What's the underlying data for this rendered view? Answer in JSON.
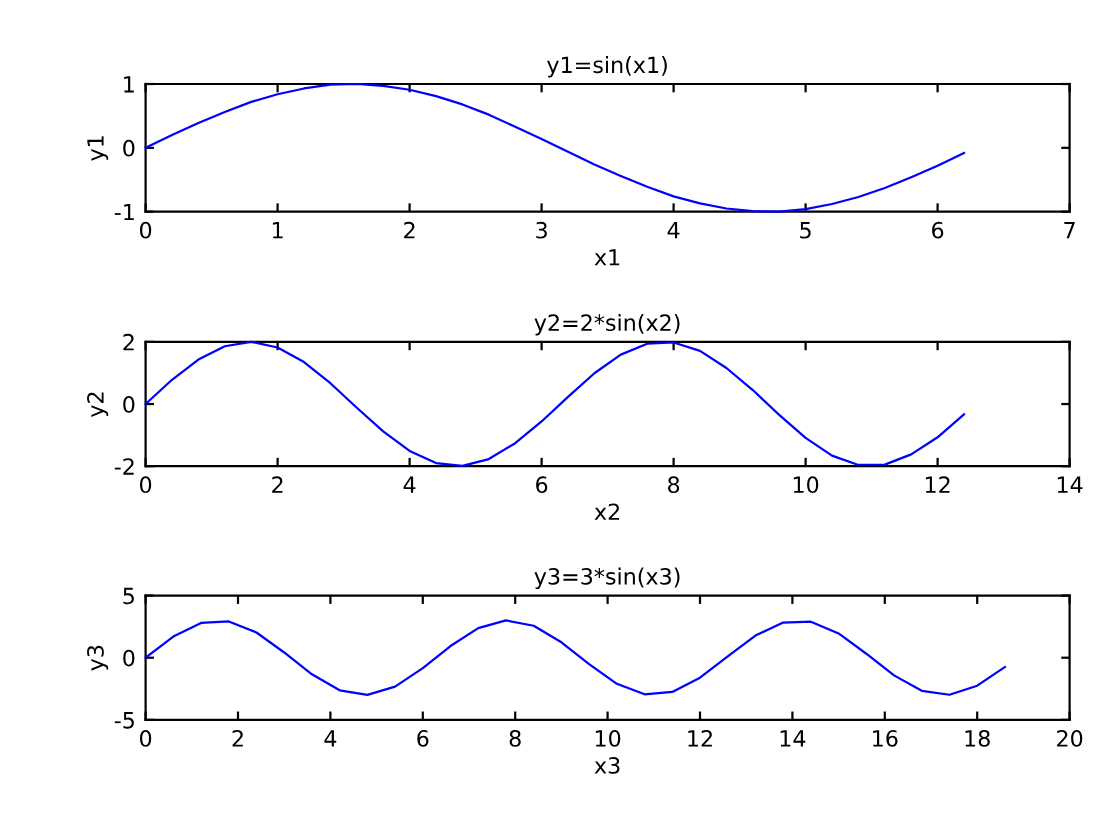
{
  "chart_data": [
    {
      "type": "line",
      "title": "y1=sin(x1)",
      "xlabel": "x1",
      "ylabel": "y1",
      "xlim": [
        0,
        7
      ],
      "xticks": [
        0,
        1,
        2,
        3,
        4,
        5,
        6,
        7
      ],
      "ylim": [
        -1,
        1
      ],
      "yticks": [
        -1,
        0,
        1
      ],
      "grid": false,
      "legend": false,
      "series": [
        {
          "color": "#0000ff",
          "x": [
            0,
            0.2,
            0.4,
            0.6,
            0.8,
            1.0,
            1.2,
            1.4,
            1.6,
            1.8,
            2.0,
            2.2,
            2.4,
            2.6,
            2.8,
            3.0,
            3.2,
            3.4,
            3.6,
            3.8,
            4.0,
            4.2,
            4.4,
            4.6,
            4.8,
            5.0,
            5.2,
            5.4,
            5.6,
            5.8,
            6.0,
            6.2
          ],
          "values": [
            0,
            0.2,
            0.39,
            0.56,
            0.72,
            0.84,
            0.93,
            0.99,
            1.0,
            0.97,
            0.91,
            0.81,
            0.68,
            0.52,
            0.33,
            0.14,
            -0.06,
            -0.26,
            -0.44,
            -0.61,
            -0.76,
            -0.87,
            -0.95,
            -0.99,
            -1.0,
            -0.96,
            -0.88,
            -0.77,
            -0.63,
            -0.46,
            -0.28,
            -0.08
          ]
        }
      ]
    },
    {
      "type": "line",
      "title": "y2=2*sin(x2)",
      "xlabel": "x2",
      "ylabel": "y2",
      "xlim": [
        0,
        14
      ],
      "xticks": [
        0,
        2,
        4,
        6,
        8,
        10,
        12,
        14
      ],
      "ylim": [
        -2,
        2
      ],
      "yticks": [
        -2,
        0,
        2
      ],
      "grid": false,
      "legend": false,
      "series": [
        {
          "color": "#0000ff",
          "x": [
            0,
            0.4,
            0.8,
            1.2,
            1.6,
            2.0,
            2.4,
            2.8,
            3.2,
            3.6,
            4.0,
            4.4,
            4.8,
            5.2,
            5.6,
            6.0,
            6.4,
            6.8,
            7.2,
            7.6,
            8.0,
            8.4,
            8.8,
            9.2,
            9.6,
            10.0,
            10.4,
            10.8,
            11.2,
            11.6,
            12.0,
            12.4
          ],
          "values": [
            0,
            0.78,
            1.43,
            1.86,
            2.0,
            1.82,
            1.35,
            0.67,
            -0.12,
            -0.88,
            -1.51,
            -1.9,
            -1.99,
            -1.77,
            -1.26,
            -0.56,
            0.23,
            0.99,
            1.59,
            1.94,
            1.98,
            1.71,
            1.16,
            0.45,
            -0.35,
            -1.09,
            -1.66,
            -1.96,
            -1.95,
            -1.62,
            -1.07,
            -0.33
          ]
        }
      ]
    },
    {
      "type": "line",
      "title": "y3=3*sin(x3)",
      "xlabel": "x3",
      "ylabel": "y3",
      "xlim": [
        0,
        20
      ],
      "xticks": [
        0,
        2,
        4,
        6,
        8,
        10,
        12,
        14,
        16,
        18,
        20
      ],
      "ylim": [
        -5,
        5
      ],
      "yticks": [
        -5,
        0,
        5
      ],
      "grid": false,
      "legend": false,
      "series": [
        {
          "color": "#0000ff",
          "x": [
            0,
            0.6,
            1.2,
            1.8,
            2.4,
            3.0,
            3.6,
            4.2,
            4.8,
            5.4,
            6.0,
            6.6,
            7.2,
            7.8,
            8.4,
            9.0,
            9.6,
            10.2,
            10.8,
            11.4,
            12.0,
            12.6,
            13.2,
            13.8,
            14.4,
            15.0,
            15.6,
            16.2,
            16.8,
            17.4,
            18.0,
            18.6
          ],
          "values": [
            0,
            1.7,
            2.8,
            2.92,
            2.03,
            0.42,
            -1.33,
            -2.62,
            -2.99,
            -2.32,
            -0.84,
            0.94,
            2.38,
            3.0,
            2.57,
            1.24,
            -0.52,
            -2.1,
            -2.94,
            -2.75,
            -1.61,
            0.1,
            1.78,
            2.83,
            2.9,
            1.95,
            0.32,
            -1.42,
            -2.66,
            -2.98,
            -2.25,
            -0.74
          ]
        }
      ]
    }
  ]
}
